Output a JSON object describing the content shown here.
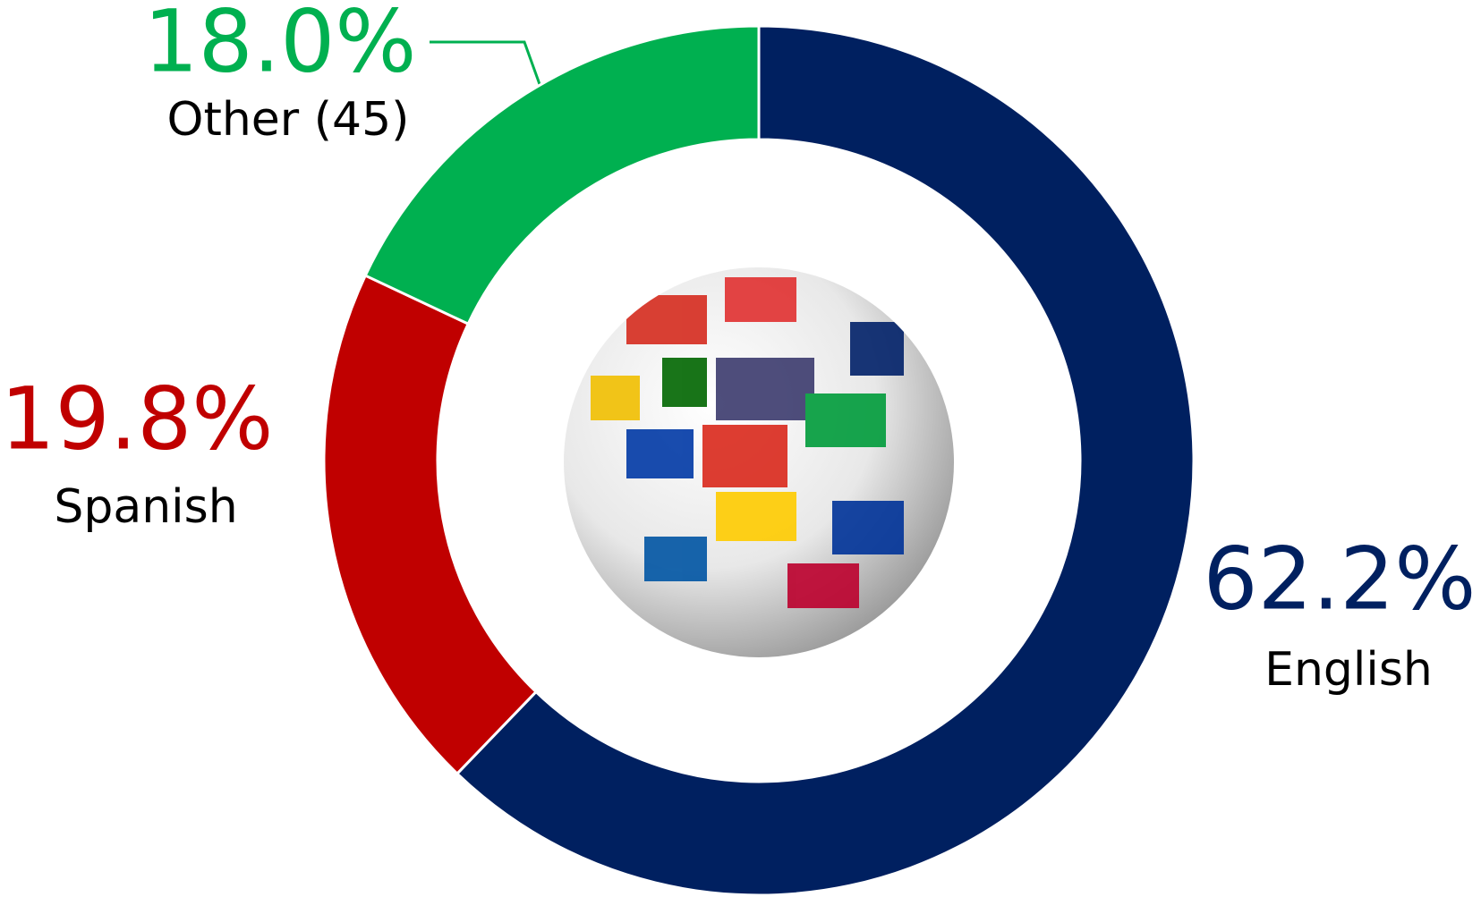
{
  "chart_data": {
    "type": "donut",
    "categories": [
      "English",
      "Spanish",
      "Other (45)"
    ],
    "values": [
      62.2,
      19.8,
      18.0
    ],
    "value_labels": [
      "62.2%",
      "19.8%",
      "18.0%"
    ],
    "colors": [
      "#002060",
      "#c00000",
      "#00b050"
    ]
  }
}
